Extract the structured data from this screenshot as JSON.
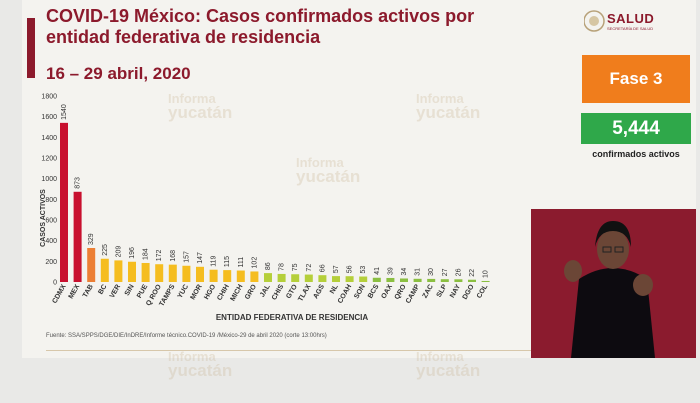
{
  "header": {
    "title": "COVID-19 México: Casos confirmados activos por entidad federativa de residencia",
    "date_range": "16 – 29 abril, 2020"
  },
  "logo": {
    "text": "SALUD",
    "subtext": "SECRETARÍA DE SALUD"
  },
  "phase_badge": {
    "label": "Fase 3",
    "color": "#f07d1c"
  },
  "confirmed_badge": {
    "value": "5,444",
    "label": "confirmados activos",
    "color": "#2fa84a"
  },
  "watermark": {
    "line1": "Informa",
    "line2": "yucatán"
  },
  "source_note": "Fuente: SSA/SPPS/DGE/DIE/InDRE/Informe técnico.COVID-19 /México-29 de abril 2020 (corte 13:00hrs)",
  "colors": {
    "red": "#c8102e",
    "orange": "#ec7f35",
    "yellow": "#f5bd1f",
    "yellowgreen": "#b5cf3a",
    "green": "#8bbf41"
  },
  "chart_data": {
    "type": "bar",
    "ylabel": "CASOS ACTIVOS",
    "xlabel": "ENTIDAD FEDERATIVA DE RESIDENCIA",
    "ylim": [
      0,
      1800
    ],
    "yticks": [
      0,
      200,
      400,
      600,
      800,
      1000,
      1200,
      1400,
      1600,
      1800
    ],
    "grid": false,
    "categories": [
      "CDMX",
      "MEX",
      "TAB",
      "BC",
      "VER",
      "SIN",
      "PUE",
      "Q ROO",
      "TAMPS",
      "YUC",
      "MOR",
      "HGO",
      "CHIH",
      "MICH",
      "GRO",
      "JAL",
      "CHIS",
      "GTO",
      "TLAX",
      "AGS",
      "NL",
      "COAH",
      "SON",
      "BCS",
      "OAX",
      "QRO",
      "CAMP",
      "ZAC",
      "SLP",
      "NAY",
      "DGO",
      "COL"
    ],
    "values": [
      1540,
      873,
      329,
      225,
      209,
      196,
      184,
      172,
      168,
      157,
      147,
      119,
      115,
      111,
      102,
      86,
      78,
      75,
      72,
      66,
      57,
      56,
      53,
      41,
      39,
      34,
      31,
      30,
      27,
      26,
      22,
      10
    ],
    "bar_colors": [
      "red",
      "red",
      "orange",
      "yellow",
      "yellow",
      "yellow",
      "yellow",
      "yellow",
      "yellow",
      "yellow",
      "yellow",
      "yellow",
      "yellow",
      "yellow",
      "yellow",
      "yellowgreen",
      "yellowgreen",
      "yellowgreen",
      "yellowgreen",
      "yellowgreen",
      "yellowgreen",
      "yellowgreen",
      "yellowgreen",
      "green",
      "green",
      "green",
      "green",
      "green",
      "green",
      "green",
      "green",
      "green"
    ]
  }
}
